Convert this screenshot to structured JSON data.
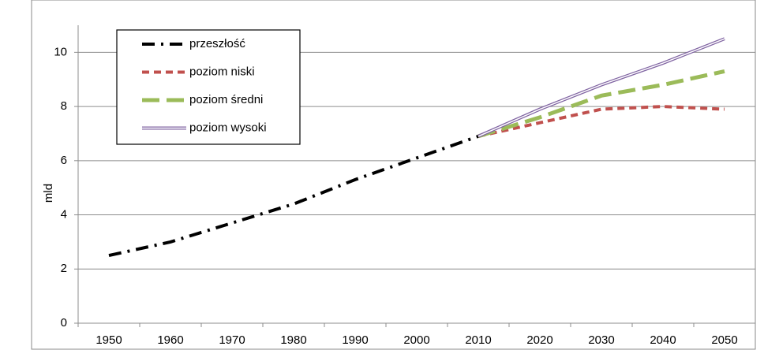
{
  "chart_data": {
    "type": "line",
    "y_label": "mld",
    "categories": [
      "1950",
      "1960",
      "1970",
      "1980",
      "1990",
      "2000",
      "2010",
      "2020",
      "2030",
      "2040",
      "2050"
    ],
    "series": [
      {
        "name": "przeszłość",
        "color": "#000000",
        "style": "dashdot",
        "values": [
          2.5,
          3.0,
          3.7,
          4.4,
          5.3,
          6.1,
          6.9,
          null,
          null,
          null,
          null
        ]
      },
      {
        "name": "poziom niski",
        "color": "#c0504d",
        "style": "dashed",
        "values": [
          null,
          null,
          null,
          null,
          null,
          null,
          6.9,
          7.4,
          7.9,
          8.0,
          7.9
        ]
      },
      {
        "name": "poziom średni",
        "color": "#9bbb59",
        "style": "longdash",
        "values": [
          null,
          null,
          null,
          null,
          null,
          null,
          6.9,
          7.6,
          8.4,
          8.8,
          9.3
        ]
      },
      {
        "name": "poziom wysoki",
        "color": "#8064a2",
        "style": "double",
        "values": [
          null,
          null,
          null,
          null,
          null,
          null,
          6.9,
          7.9,
          8.8,
          9.6,
          10.5
        ]
      }
    ],
    "ylim": [
      0,
      11
    ],
    "yticks": [
      0,
      2,
      4,
      6,
      8,
      10
    ],
    "grid": true,
    "legend": "top-left"
  }
}
